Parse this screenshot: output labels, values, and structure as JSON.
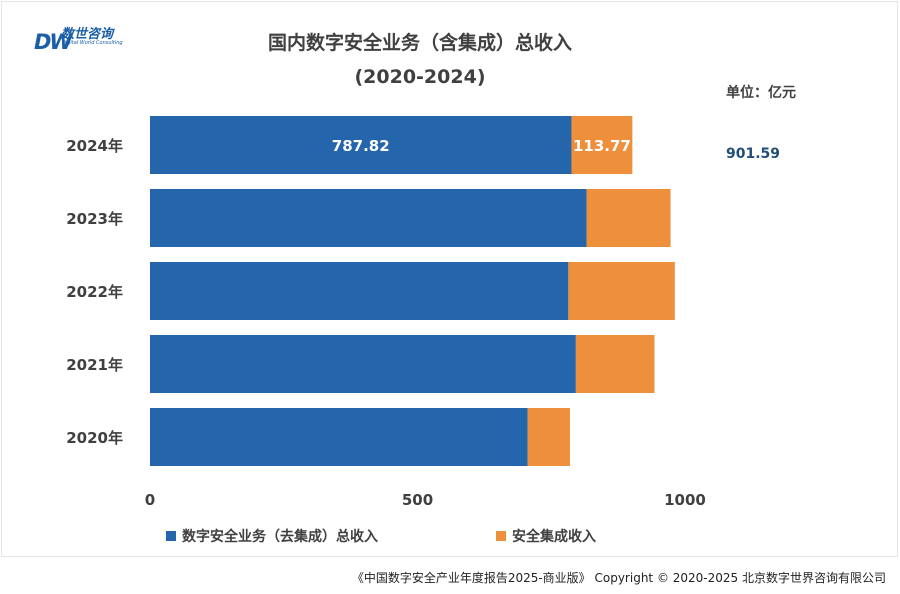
{
  "logo": {
    "mark": "DW",
    "cn": "数世咨询",
    "en": "Digital World Consulting"
  },
  "unit_label": "单位：亿元",
  "total_label": "901.59",
  "footer": "《中国数字安全产业年度报告2025-商业版》 Copyright © 2020-2025 北京数字世界咨询有限公司",
  "colors": {
    "blue": "#2465ac",
    "orange": "#ee8f3c"
  },
  "chart_data": {
    "type": "bar",
    "orientation": "horizontal",
    "stacked": true,
    "title": "国内数字安全业务（含集成）总收入",
    "subtitle": "(2020-2024)",
    "categories": [
      "2024年",
      "2023年",
      "2022年",
      "2021年",
      "2020年"
    ],
    "series": [
      {
        "name": "数字安全业务（去集成）总收入",
        "color": "#2465ac",
        "values": [
          787.82,
          816,
          782,
          796,
          706
        ]
      },
      {
        "name": "安全集成收入",
        "color": "#ee8f3c",
        "values": [
          113.77,
          157,
          199,
          147,
          79
        ]
      }
    ],
    "data_labels": {
      "2024年": [
        "787.82",
        "113.77"
      ]
    },
    "xlim": [
      0,
      1000
    ],
    "xticks": [
      "0",
      "500",
      "1000"
    ],
    "grid": false,
    "legend_position": "bottom"
  }
}
